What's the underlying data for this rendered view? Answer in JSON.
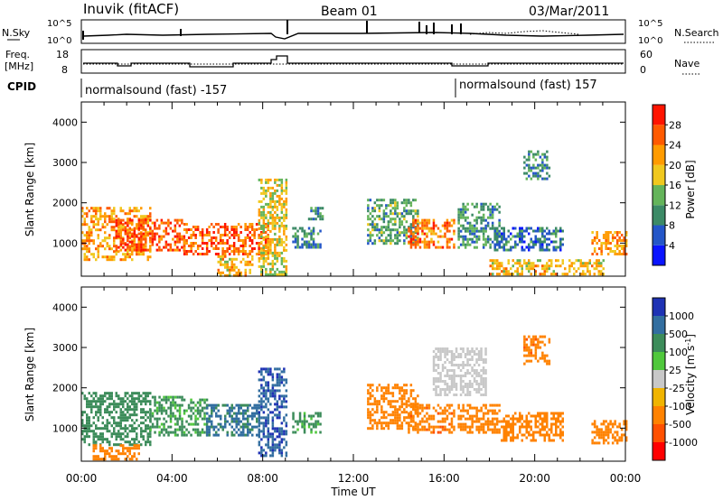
{
  "header": {
    "station": "Inuvik (fitACF)",
    "beam": "Beam 01",
    "date": "03/Mar/2011"
  },
  "strip_panels": {
    "noise_left_label": "N.Sky",
    "noise_right_label": "N.Search",
    "noise_ticks": [
      "10^5",
      "10^0"
    ],
    "noise_ticks_right": [
      "10^5",
      "10^0"
    ],
    "freq_left_label_1": "Freq.",
    "freq_left_label_2": "[MHz]",
    "freq_ticks": [
      "18",
      "8"
    ],
    "nave_label": "Nave",
    "nave_ticks": [
      "60",
      "0"
    ],
    "cpid_label": "CPID",
    "cpid_segments": [
      {
        "label": "normalsound (fast) -157",
        "start_h": 0,
        "end_h": 16.5
      },
      {
        "label": "normalsound (fast) 157",
        "start_h": 16.5,
        "end_h": 24
      }
    ]
  },
  "power_colorbar": {
    "title": "Power [dB]",
    "ticks": [
      "4",
      "8",
      "12",
      "16",
      "20",
      "24",
      "28"
    ],
    "colors": [
      "#0a14ff",
      "#2456c8",
      "#3c8a66",
      "#64b45a",
      "#f0c81e",
      "#ff9b00",
      "#ff5a00",
      "#ff1400"
    ]
  },
  "velocity_colorbar": {
    "title": "Velocity [m s",
    "title_sup": "-1",
    "title_close": "]",
    "ticks": [
      "1000",
      "500",
      "100",
      "25",
      "-25",
      "-100",
      "-500",
      "-1000"
    ],
    "colors": [
      "#1e32b4",
      "#326ea0",
      "#3c8c5a",
      "#50c83c",
      "#c8c8c8",
      "#f0b400",
      "#ff8200",
      "#ff5000",
      "#ff0000"
    ]
  },
  "chart_data": {
    "type": "heatmap",
    "title": "Inuvik (fitACF) Beam 01 03/Mar/2011",
    "xlabel": "Time UT",
    "ylabel": "Slant Range [km]",
    "x_ticks": [
      "00:00",
      "04:00",
      "08:00",
      "12:00",
      "16:00",
      "20:00",
      "00:00"
    ],
    "y_ticks": [
      "1000",
      "2000",
      "3000",
      "4000"
    ],
    "xlim_hours": [
      0,
      24
    ],
    "ylim_km": [
      180,
      4500
    ],
    "panels": [
      {
        "name": "power",
        "units": "dB",
        "regions": [
          {
            "t0": 0.0,
            "t1": 3.0,
            "r0": 600,
            "r1": 1900,
            "value": 22
          },
          {
            "t0": 1.5,
            "t1": 4.5,
            "r0": 800,
            "r1": 1600,
            "value": 27
          },
          {
            "t0": 4.5,
            "t1": 8.2,
            "r0": 700,
            "r1": 1500,
            "value": 26
          },
          {
            "t0": 6.0,
            "t1": 7.5,
            "r0": 200,
            "r1": 700,
            "value": 20
          },
          {
            "t0": 7.8,
            "t1": 9.0,
            "r0": 200,
            "r1": 2600,
            "value": 18
          },
          {
            "t0": 9.3,
            "t1": 10.5,
            "r0": 900,
            "r1": 1400,
            "value": 10
          },
          {
            "t0": 10.0,
            "t1": 10.6,
            "r0": 1600,
            "r1": 1900,
            "value": 9
          },
          {
            "t0": 12.6,
            "t1": 14.8,
            "r0": 1000,
            "r1": 2100,
            "value": 12
          },
          {
            "t0": 14.4,
            "t1": 16.4,
            "r0": 900,
            "r1": 1600,
            "value": 24
          },
          {
            "t0": 16.6,
            "t1": 18.4,
            "r0": 900,
            "r1": 2000,
            "value": 11
          },
          {
            "t0": 18.2,
            "t1": 21.2,
            "r0": 800,
            "r1": 1400,
            "value": 8
          },
          {
            "t0": 19.5,
            "t1": 20.6,
            "r0": 2600,
            "r1": 3300,
            "value": 10
          },
          {
            "t0": 18.0,
            "t1": 23.0,
            "r0": 200,
            "r1": 600,
            "value": 20
          },
          {
            "t0": 22.5,
            "t1": 24.0,
            "r0": 700,
            "r1": 1300,
            "value": 22
          }
        ]
      },
      {
        "name": "velocity",
        "units": "m/s",
        "regions": [
          {
            "t0": 0.0,
            "t1": 3.0,
            "r0": 600,
            "r1": 1900,
            "value": 150
          },
          {
            "t0": 3.0,
            "t1": 5.5,
            "r0": 800,
            "r1": 1800,
            "value": 120
          },
          {
            "t0": 5.5,
            "t1": 7.8,
            "r0": 800,
            "r1": 1600,
            "value": 600
          },
          {
            "t0": 7.8,
            "t1": 9.0,
            "r0": 300,
            "r1": 2500,
            "value": 900
          },
          {
            "t0": 9.3,
            "t1": 10.5,
            "r0": 900,
            "r1": 1400,
            "value": 120
          },
          {
            "t0": 12.6,
            "t1": 14.8,
            "r0": 1000,
            "r1": 2100,
            "value": -200
          },
          {
            "t0": 14.4,
            "t1": 16.4,
            "r0": 900,
            "r1": 1600,
            "value": -400
          },
          {
            "t0": 15.5,
            "t1": 17.8,
            "r0": 1800,
            "r1": 3000,
            "value": -10
          },
          {
            "t0": 16.6,
            "t1": 18.4,
            "r0": 900,
            "r1": 1600,
            "value": -300
          },
          {
            "t0": 18.5,
            "t1": 21.2,
            "r0": 700,
            "r1": 1400,
            "value": -300
          },
          {
            "t0": 19.5,
            "t1": 20.6,
            "r0": 2600,
            "r1": 3300,
            "value": -400
          },
          {
            "t0": 22.5,
            "t1": 24.0,
            "r0": 600,
            "r1": 1200,
            "value": -300
          },
          {
            "t0": 0.5,
            "t1": 2.5,
            "r0": 200,
            "r1": 600,
            "value": -300
          }
        ]
      }
    ]
  }
}
